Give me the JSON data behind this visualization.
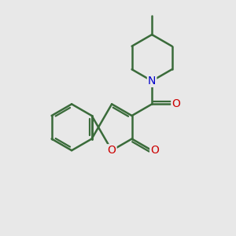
{
  "bg_color": "#e8e8e8",
  "bond_color": "#3a6b3a",
  "n_color": "#0000cc",
  "o_color": "#cc0000",
  "line_width": 1.8,
  "font_size": 10,
  "figsize": [
    3.0,
    3.0
  ],
  "dpi": 100,
  "xlim": [
    0,
    10
  ],
  "ylim": [
    0,
    10
  ]
}
